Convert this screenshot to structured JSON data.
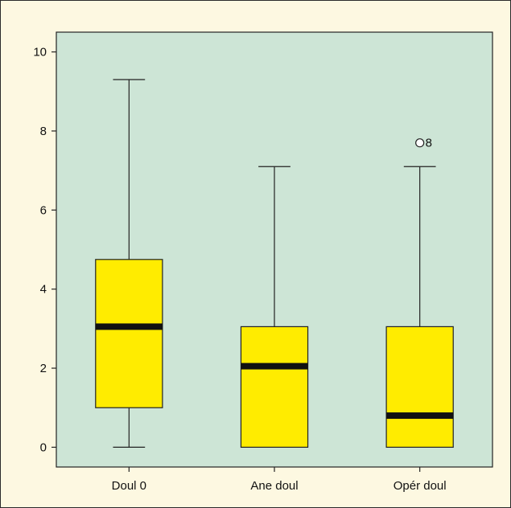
{
  "chart_data": {
    "type": "boxplot",
    "title": "",
    "xlabel": "",
    "ylabel": "",
    "ylim": [
      -0.5,
      10.5
    ],
    "yticks": [
      0,
      2,
      4,
      6,
      8,
      10
    ],
    "categories": [
      "Doul 0",
      "Ane doul",
      "Opér doul"
    ],
    "boxes": [
      {
        "category": "Doul 0",
        "min": 0,
        "q1": 1,
        "median": 3.05,
        "q3": 4.75,
        "max": 9.3,
        "outliers": []
      },
      {
        "category": "Ane doul",
        "min": 0,
        "q1": 0,
        "median": 2.05,
        "q3": 3.05,
        "max": 7.1,
        "outliers": []
      },
      {
        "category": "Opér doul",
        "min": 0,
        "q1": 0,
        "median": 0.8,
        "q3": 3.05,
        "max": 7.1,
        "outliers": [
          {
            "value": 7.7,
            "label": "8"
          }
        ]
      }
    ],
    "colors": {
      "box_fill": "#ffec00",
      "plot_bg": "#cde5d6",
      "page_bg": "#fdf8e1",
      "median": "#111111"
    },
    "grid": false,
    "legend": "none"
  }
}
